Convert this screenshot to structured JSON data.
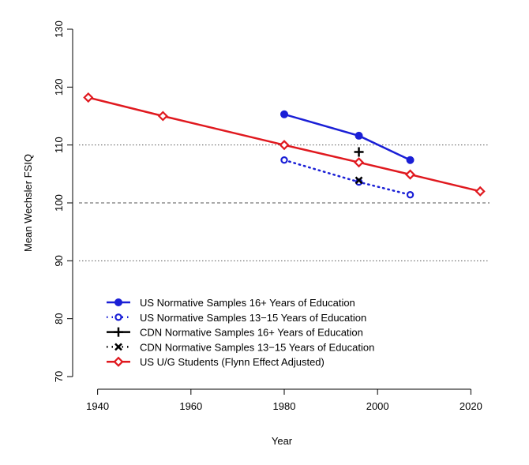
{
  "chart_data": {
    "type": "line",
    "title": "",
    "xlabel": "Year",
    "ylabel": "Mean Wechsler FSIQ",
    "xlim": [
      1936,
      2024
    ],
    "ylim": [
      70,
      130
    ],
    "xticks": [
      1940,
      1960,
      1980,
      2000,
      2020
    ],
    "yticks": [
      70,
      80,
      90,
      100,
      110,
      120,
      130
    ],
    "reference_lines": [
      {
        "y": 100,
        "style": "dashed"
      },
      {
        "y": 110,
        "style": "dotted"
      },
      {
        "y": 90,
        "style": "dotted"
      }
    ],
    "legend_position": "bottom-left",
    "series": [
      {
        "name": "US Normative Samples 16+ Years of Education",
        "color": "#1a1fd6",
        "line": "solid",
        "marker": "filled-circle",
        "x": [
          1980,
          1996,
          2007
        ],
        "y": [
          115.3,
          111.6,
          107.4
        ]
      },
      {
        "name": "US Normative Samples 13−15 Years of Education",
        "color": "#1a1fd6",
        "line": "dotted",
        "marker": "open-circle",
        "x": [
          1980,
          1996,
          2007
        ],
        "y": [
          107.4,
          103.6,
          101.4
        ]
      },
      {
        "name": "CDN Normative Samples 16+ Years of Education",
        "color": "#000000",
        "line": "solid",
        "marker": "plus",
        "x": [
          1996
        ],
        "y": [
          108.8
        ]
      },
      {
        "name": "CDN Normative Samples 13−15 Years of Education",
        "color": "#000000",
        "line": "dotted",
        "marker": "x",
        "x": [
          1996
        ],
        "y": [
          103.9
        ]
      },
      {
        "name": "US U/G Students (Flynn Effect Adjusted)",
        "color": "#e0191f",
        "line": "solid",
        "marker": "open-diamond",
        "x": [
          1938,
          1954,
          1980,
          1996,
          2007,
          2022
        ],
        "y": [
          118.2,
          115.0,
          110.0,
          107.0,
          104.9,
          102.0
        ]
      }
    ]
  }
}
